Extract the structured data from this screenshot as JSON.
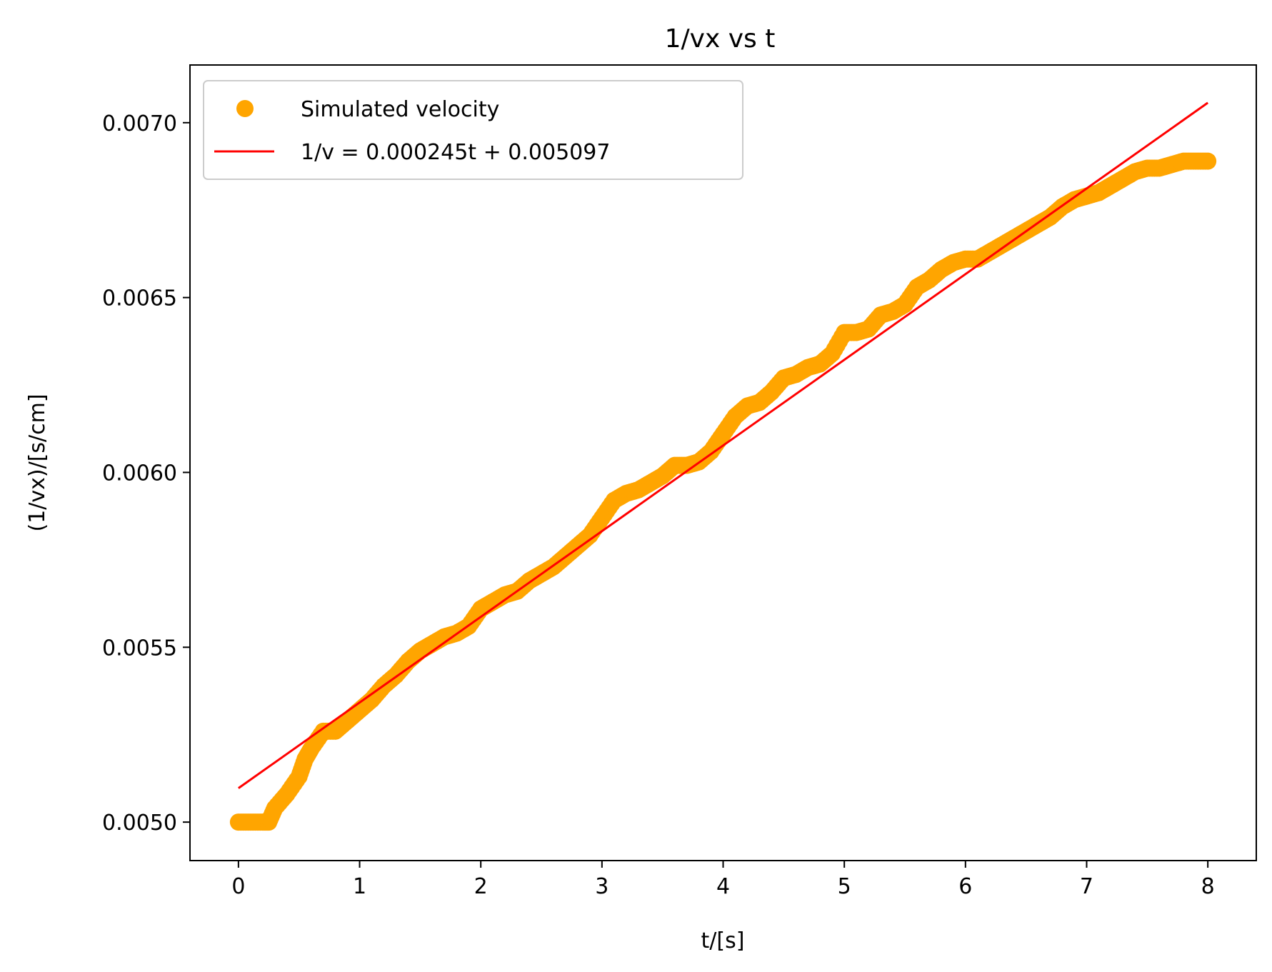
{
  "chart_data": {
    "type": "scatter",
    "title": "1/vx vs t",
    "xlabel": "t/[s]",
    "ylabel": "(1/vx)/[s/cm]",
    "xlim": [
      -0.4,
      8.4
    ],
    "ylim": [
      0.00489,
      0.007165
    ],
    "xticks": [
      0,
      1,
      2,
      3,
      4,
      5,
      6,
      7,
      8
    ],
    "xtick_labels": [
      "0",
      "1",
      "2",
      "3",
      "4",
      "5",
      "6",
      "7",
      "8"
    ],
    "yticks": [
      0.005,
      0.0055,
      0.006,
      0.0065,
      0.007
    ],
    "ytick_labels": [
      "0.0050",
      "0.0055",
      "0.0060",
      "0.0065",
      "0.0070"
    ],
    "grid": false,
    "legend_position": "upper-left",
    "series": [
      {
        "name": "Simulated velocity",
        "kind": "scatter",
        "color": "#FFA500",
        "points": [
          [
            0.0,
            0.005
          ],
          [
            0.1,
            0.005
          ],
          [
            0.2,
            0.005
          ],
          [
            0.25,
            0.005
          ],
          [
            0.3,
            0.00504
          ],
          [
            0.4,
            0.00508
          ],
          [
            0.5,
            0.00513
          ],
          [
            0.55,
            0.00518
          ],
          [
            0.6,
            0.00521
          ],
          [
            0.7,
            0.00526
          ],
          [
            0.8,
            0.00526
          ],
          [
            0.9,
            0.00529
          ],
          [
            1.0,
            0.00532
          ],
          [
            1.1,
            0.00535
          ],
          [
            1.2,
            0.00539
          ],
          [
            1.3,
            0.00542
          ],
          [
            1.4,
            0.00546
          ],
          [
            1.5,
            0.00549
          ],
          [
            1.6,
            0.00551
          ],
          [
            1.7,
            0.00553
          ],
          [
            1.8,
            0.00554
          ],
          [
            1.9,
            0.00556
          ],
          [
            2.0,
            0.00561
          ],
          [
            2.1,
            0.00563
          ],
          [
            2.2,
            0.00565
          ],
          [
            2.3,
            0.00566
          ],
          [
            2.4,
            0.00569
          ],
          [
            2.5,
            0.00571
          ],
          [
            2.6,
            0.00573
          ],
          [
            2.7,
            0.00576
          ],
          [
            2.8,
            0.00579
          ],
          [
            2.9,
            0.00582
          ],
          [
            3.0,
            0.00587
          ],
          [
            3.1,
            0.00592
          ],
          [
            3.2,
            0.00594
          ],
          [
            3.3,
            0.00595
          ],
          [
            3.4,
            0.00597
          ],
          [
            3.5,
            0.00599
          ],
          [
            3.6,
            0.00602
          ],
          [
            3.7,
            0.00602
          ],
          [
            3.8,
            0.00603
          ],
          [
            3.9,
            0.00606
          ],
          [
            4.0,
            0.00611
          ],
          [
            4.1,
            0.00616
          ],
          [
            4.2,
            0.00619
          ],
          [
            4.3,
            0.0062
          ],
          [
            4.4,
            0.00623
          ],
          [
            4.5,
            0.00627
          ],
          [
            4.6,
            0.00628
          ],
          [
            4.7,
            0.0063
          ],
          [
            4.8,
            0.00631
          ],
          [
            4.9,
            0.00634
          ],
          [
            5.0,
            0.0064
          ],
          [
            5.1,
            0.0064
          ],
          [
            5.2,
            0.00641
          ],
          [
            5.3,
            0.00645
          ],
          [
            5.4,
            0.00646
          ],
          [
            5.5,
            0.00648
          ],
          [
            5.6,
            0.00653
          ],
          [
            5.7,
            0.00655
          ],
          [
            5.8,
            0.00658
          ],
          [
            5.9,
            0.0066
          ],
          [
            6.0,
            0.00661
          ],
          [
            6.1,
            0.00661
          ],
          [
            6.2,
            0.00663
          ],
          [
            6.3,
            0.00665
          ],
          [
            6.4,
            0.00667
          ],
          [
            6.5,
            0.00669
          ],
          [
            6.6,
            0.00671
          ],
          [
            6.7,
            0.00673
          ],
          [
            6.8,
            0.00676
          ],
          [
            6.9,
            0.00678
          ],
          [
            7.0,
            0.00679
          ],
          [
            7.1,
            0.0068
          ],
          [
            7.2,
            0.00682
          ],
          [
            7.3,
            0.00684
          ],
          [
            7.4,
            0.00686
          ],
          [
            7.5,
            0.00687
          ],
          [
            7.6,
            0.00687
          ],
          [
            7.7,
            0.00688
          ],
          [
            7.8,
            0.00689
          ],
          [
            7.9,
            0.00689
          ],
          [
            8.0,
            0.00689
          ]
        ]
      },
      {
        "name": "1/v = 0.000245t + 0.005097",
        "kind": "line",
        "color": "#FF0000",
        "slope": 0.000245,
        "intercept": 0.005097,
        "x_range": [
          0,
          8
        ]
      }
    ]
  }
}
